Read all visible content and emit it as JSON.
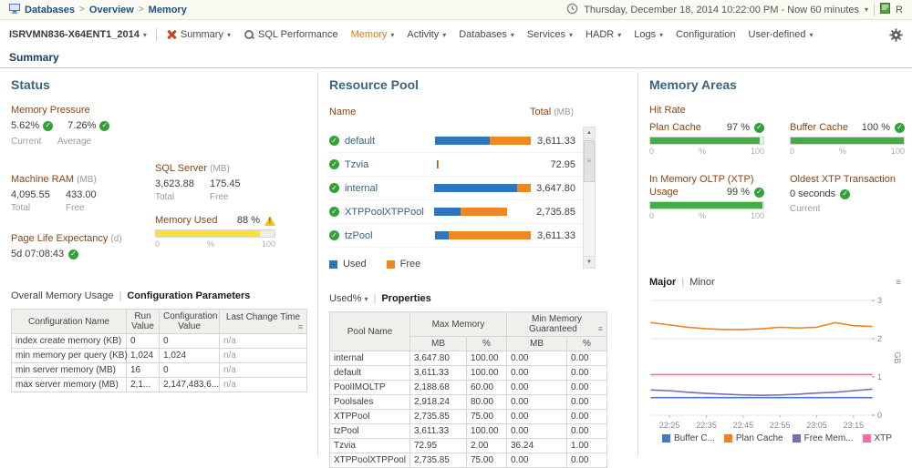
{
  "ui": {
    "divider": "|"
  },
  "breadcrumb": {
    "separator": ">",
    "items": [
      "Databases",
      "Overview",
      "Memory"
    ]
  },
  "topbar": {
    "time_range": "Thursday, December 18, 2014 10:22:00 PM - Now 60 minutes",
    "reports_label": "R"
  },
  "nav": {
    "server": "ISRVMN836-X64ENT1_2014",
    "items": [
      {
        "label": "Summary",
        "dropdown": true,
        "active": false,
        "icon": "agent-icon"
      },
      {
        "label": "SQL Performance",
        "dropdown": false,
        "active": false,
        "icon": "sql-performance-icon"
      },
      {
        "label": "Memory",
        "dropdown": true,
        "active": true
      },
      {
        "label": "Activity",
        "dropdown": true,
        "active": false
      },
      {
        "label": "Databases",
        "dropdown": true,
        "active": false
      },
      {
        "label": "Services",
        "dropdown": true,
        "active": false
      },
      {
        "label": "HADR",
        "dropdown": true,
        "active": false
      },
      {
        "label": "Logs",
        "dropdown": true,
        "active": false
      },
      {
        "label": "Configuration",
        "dropdown": false,
        "active": false
      },
      {
        "label": "User-defined",
        "dropdown": true,
        "active": false
      }
    ]
  },
  "page_tab": "Summary",
  "status": {
    "title": "Status",
    "memory_pressure": {
      "label": "Memory Pressure",
      "current_value": "5.62%",
      "average_value": "7.26%",
      "current_label": "Current",
      "average_label": "Average"
    },
    "machine_ram": {
      "label": "Machine RAM",
      "unit": "(MB)",
      "total": "4,095.55",
      "free": "433.00",
      "total_label": "Total",
      "free_label": "Free"
    },
    "sql_server": {
      "label": "SQL Server",
      "unit": "(MB)",
      "total": "3,623.88",
      "free": "175.45",
      "total_label": "Total",
      "free_label": "Free"
    },
    "memory_used": {
      "label": "Memory Used",
      "value": "88 %",
      "percent": 88,
      "scale_min": "0",
      "scale_mid": "%",
      "scale_max": "100"
    },
    "page_life_expectancy": {
      "label": "Page Life Expectancy",
      "unit": "(d)",
      "value": "5d 07:08:43"
    },
    "tabs": {
      "overall": "Overall Memory Usage",
      "configuration": "Configuration Parameters"
    },
    "config_table": {
      "headers": [
        "Configuration Name",
        "Run Value",
        "Configuration Value",
        "Last Change Time"
      ],
      "rows": [
        [
          "index create memory (KB)",
          "0",
          "0",
          "n/a"
        ],
        [
          "min memory per query (KB)",
          "1,024",
          "1,024",
          "n/a"
        ],
        [
          "min server memory (MB)",
          "16",
          "0",
          "n/a"
        ],
        [
          "max server memory (MB)",
          "2,1...",
          "2,147,483,6...",
          "n/a"
        ]
      ]
    }
  },
  "resource_pool": {
    "title": "Resource Pool",
    "name_header": "Name",
    "total_header": "Total",
    "total_unit": "(MB)",
    "pools": [
      {
        "name": "default",
        "total": "3,611.33",
        "bar_pct": 99,
        "used_pct": 57
      },
      {
        "name": "Tzvia",
        "total": "72.95",
        "bar_pct": 2,
        "used_pct": 50
      },
      {
        "name": "internal",
        "total": "3,647.80",
        "bar_pct": 100,
        "used_pct": 86
      },
      {
        "name": "XTPPoolXTPPool",
        "total": "2,735.85",
        "bar_pct": 75,
        "used_pct": 36
      },
      {
        "name": "tzPool",
        "total": "3,611.33",
        "bar_pct": 99,
        "used_pct": 14
      }
    ],
    "legend": {
      "used": "Used",
      "free": "Free"
    },
    "tabs": {
      "sort": "Used%",
      "properties": "Properties"
    },
    "properties_table": {
      "pool_header": "Pool Name",
      "max_memory_header": "Max Memory",
      "min_memory_header": "Min Memory Guaranteed",
      "mb_header": "MB",
      "pct_header": "%",
      "rows": [
        [
          "internal",
          "3,647.80",
          "100.00",
          "0.00",
          "0.00"
        ],
        [
          "default",
          "3,611.33",
          "100.00",
          "0.00",
          "0.00"
        ],
        [
          "PoolIMOLTP",
          "2,188.68",
          "60.00",
          "0.00",
          "0.00"
        ],
        [
          "Poolsales",
          "2,918.24",
          "80.00",
          "0.00",
          "0.00"
        ],
        [
          "XTPPool",
          "2,735.85",
          "75.00",
          "0.00",
          "0.00"
        ],
        [
          "tzPool",
          "3,611.33",
          "100.00",
          "0.00",
          "0.00"
        ],
        [
          "Tzvia",
          "72.95",
          "2.00",
          "36.24",
          "1.00"
        ],
        [
          "XTPPoolXTPPool",
          "2,735.85",
          "75.00",
          "0.00",
          "0.00"
        ]
      ]
    }
  },
  "memory_areas": {
    "title": "Memory Areas",
    "hit_rate_label": "Hit Rate",
    "plan_cache": {
      "label": "Plan Cache",
      "value": "97 %",
      "percent": 97
    },
    "buffer_cache": {
      "label": "Buffer Cache",
      "value": "100 %",
      "percent": 100
    },
    "oltp_label": "In Memory OLTP (XTP)",
    "usage": {
      "label": "Usage",
      "value": "99 %",
      "percent": 99
    },
    "oldest_xtp": {
      "label": "Oldest XTP Transaction",
      "value": "0 seconds",
      "sub_label": "Current"
    },
    "scale": {
      "min": "0",
      "mid": "%",
      "max": "100"
    },
    "tabs": {
      "major": "Major",
      "minor": "Minor"
    }
  },
  "chart_data": {
    "type": "line",
    "title": "",
    "ylabel": "GB",
    "ylim": [
      0,
      3
    ],
    "yticks": [
      0,
      1,
      2,
      3
    ],
    "x_tick_labels": [
      "22:25",
      "22:35",
      "22:45",
      "22:55",
      "23:05",
      "23:15"
    ],
    "x_tick_minutes": [
      5,
      15,
      25,
      35,
      45,
      55
    ],
    "x_range_minutes": [
      0,
      60
    ],
    "sample_interval_minutes": 5,
    "grid": true,
    "legend_position": "bottom",
    "series": [
      {
        "name": "Buffer C...",
        "color": "#4a77c4",
        "values": [
          0.46,
          0.46,
          0.46,
          0.46,
          0.46,
          0.46,
          0.46,
          0.46,
          0.46,
          0.46,
          0.46,
          0.46,
          0.46
        ]
      },
      {
        "name": "Plan Cache",
        "color": "#ee8322",
        "values": [
          2.42,
          2.36,
          2.3,
          2.26,
          2.24,
          2.24,
          2.26,
          2.3,
          2.28,
          2.3,
          2.42,
          2.34,
          2.32
        ]
      },
      {
        "name": "Free Mem...",
        "color": "#7d6bb5",
        "values": [
          0.66,
          0.64,
          0.6,
          0.57,
          0.55,
          0.53,
          0.52,
          0.53,
          0.55,
          0.58,
          0.6,
          0.64,
          0.68
        ]
      },
      {
        "name": "XTP",
        "color": "#f869ae",
        "values": [
          1.06,
          1.06,
          1.06,
          1.06,
          1.06,
          1.06,
          1.06,
          1.06,
          1.06,
          1.06,
          1.06,
          1.06,
          1.06
        ]
      }
    ]
  },
  "colors": {
    "used_blue": "#2e75c0",
    "free_orange": "#ef8822",
    "ok_green": "#33a03a",
    "warn_yellow": "#f6e13d",
    "accent_orange": "#e07c12",
    "title_blue": "#3c647f",
    "label_maroon": "#8B4513"
  }
}
